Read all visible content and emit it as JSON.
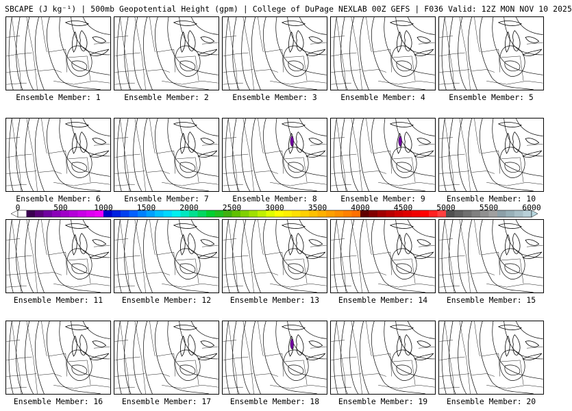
{
  "header": {
    "title": "SBCAPE (J kg⁻¹) | 500mb Geopotential Height (gpm) | College of DuPage NEXLAB 00Z GEFS | F036 Valid: 12Z MON NOV 10 2025"
  },
  "panels": [
    {
      "label": "Ensemble Member: 1",
      "cape": false
    },
    {
      "label": "Ensemble Member: 2",
      "cape": false
    },
    {
      "label": "Ensemble Member: 3",
      "cape": false
    },
    {
      "label": "Ensemble Member: 4",
      "cape": false
    },
    {
      "label": "Ensemble Member: 5",
      "cape": false
    },
    {
      "label": "Ensemble Member: 6",
      "cape": false
    },
    {
      "label": "Ensemble Member: 7",
      "cape": false
    },
    {
      "label": "Ensemble Member: 8",
      "cape": true
    },
    {
      "label": "Ensemble Member: 9",
      "cape": true
    },
    {
      "label": "Ensemble Member: 10",
      "cape": false
    },
    {
      "label": "Ensemble Member: 11",
      "cape": false
    },
    {
      "label": "Ensemble Member: 12",
      "cape": false
    },
    {
      "label": "Ensemble Member: 13",
      "cape": false
    },
    {
      "label": "Ensemble Member: 14",
      "cape": false
    },
    {
      "label": "Ensemble Member: 15",
      "cape": false
    },
    {
      "label": "Ensemble Member: 16",
      "cape": false
    },
    {
      "label": "Ensemble Member: 17",
      "cape": false
    },
    {
      "label": "Ensemble Member: 18",
      "cape": true
    },
    {
      "label": "Ensemble Member: 19",
      "cape": false
    },
    {
      "label": "Ensemble Member: 20",
      "cape": false
    }
  ],
  "colorbar": {
    "ticks": [
      "0",
      "500",
      "1000",
      "1500",
      "2000",
      "2500",
      "3000",
      "3500",
      "4000",
      "4500",
      "5000",
      "5500",
      "6000"
    ],
    "colors": [
      "#ffffff",
      "#3a0050",
      "#580078",
      "#7000a0",
      "#8a00b8",
      "#a000c8",
      "#b400d8",
      "#c800e6",
      "#dc00f0",
      "#ee00fa",
      "#0000c8",
      "#0020e0",
      "#0040f0",
      "#0060ff",
      "#0080ff",
      "#00a0ff",
      "#00c0ff",
      "#00d8ff",
      "#00f0f0",
      "#00e8c0",
      "#00e090",
      "#00d860",
      "#00d030",
      "#20c020",
      "#40b010",
      "#60c000",
      "#80d000",
      "#a0e000",
      "#c0f000",
      "#e0ff00",
      "#ffff00",
      "#fff000",
      "#ffe000",
      "#ffd000",
      "#ffc000",
      "#ffb000",
      "#ffa000",
      "#ff9000",
      "#ff8000",
      "#ff7000",
      "#600000",
      "#800000",
      "#a00000",
      "#b80000",
      "#d00000",
      "#e00000",
      "#f00000",
      "#ff0000",
      "#ff2020",
      "#ff4040",
      "#505050",
      "#606060",
      "#707070",
      "#808080",
      "#909090",
      "#a0a0a0",
      "#8ca0a8",
      "#98b0b8",
      "#a8c0c8",
      "#b8d0d8"
    ],
    "under_color": "#ffffff",
    "over_color": "#b8d8e0"
  }
}
